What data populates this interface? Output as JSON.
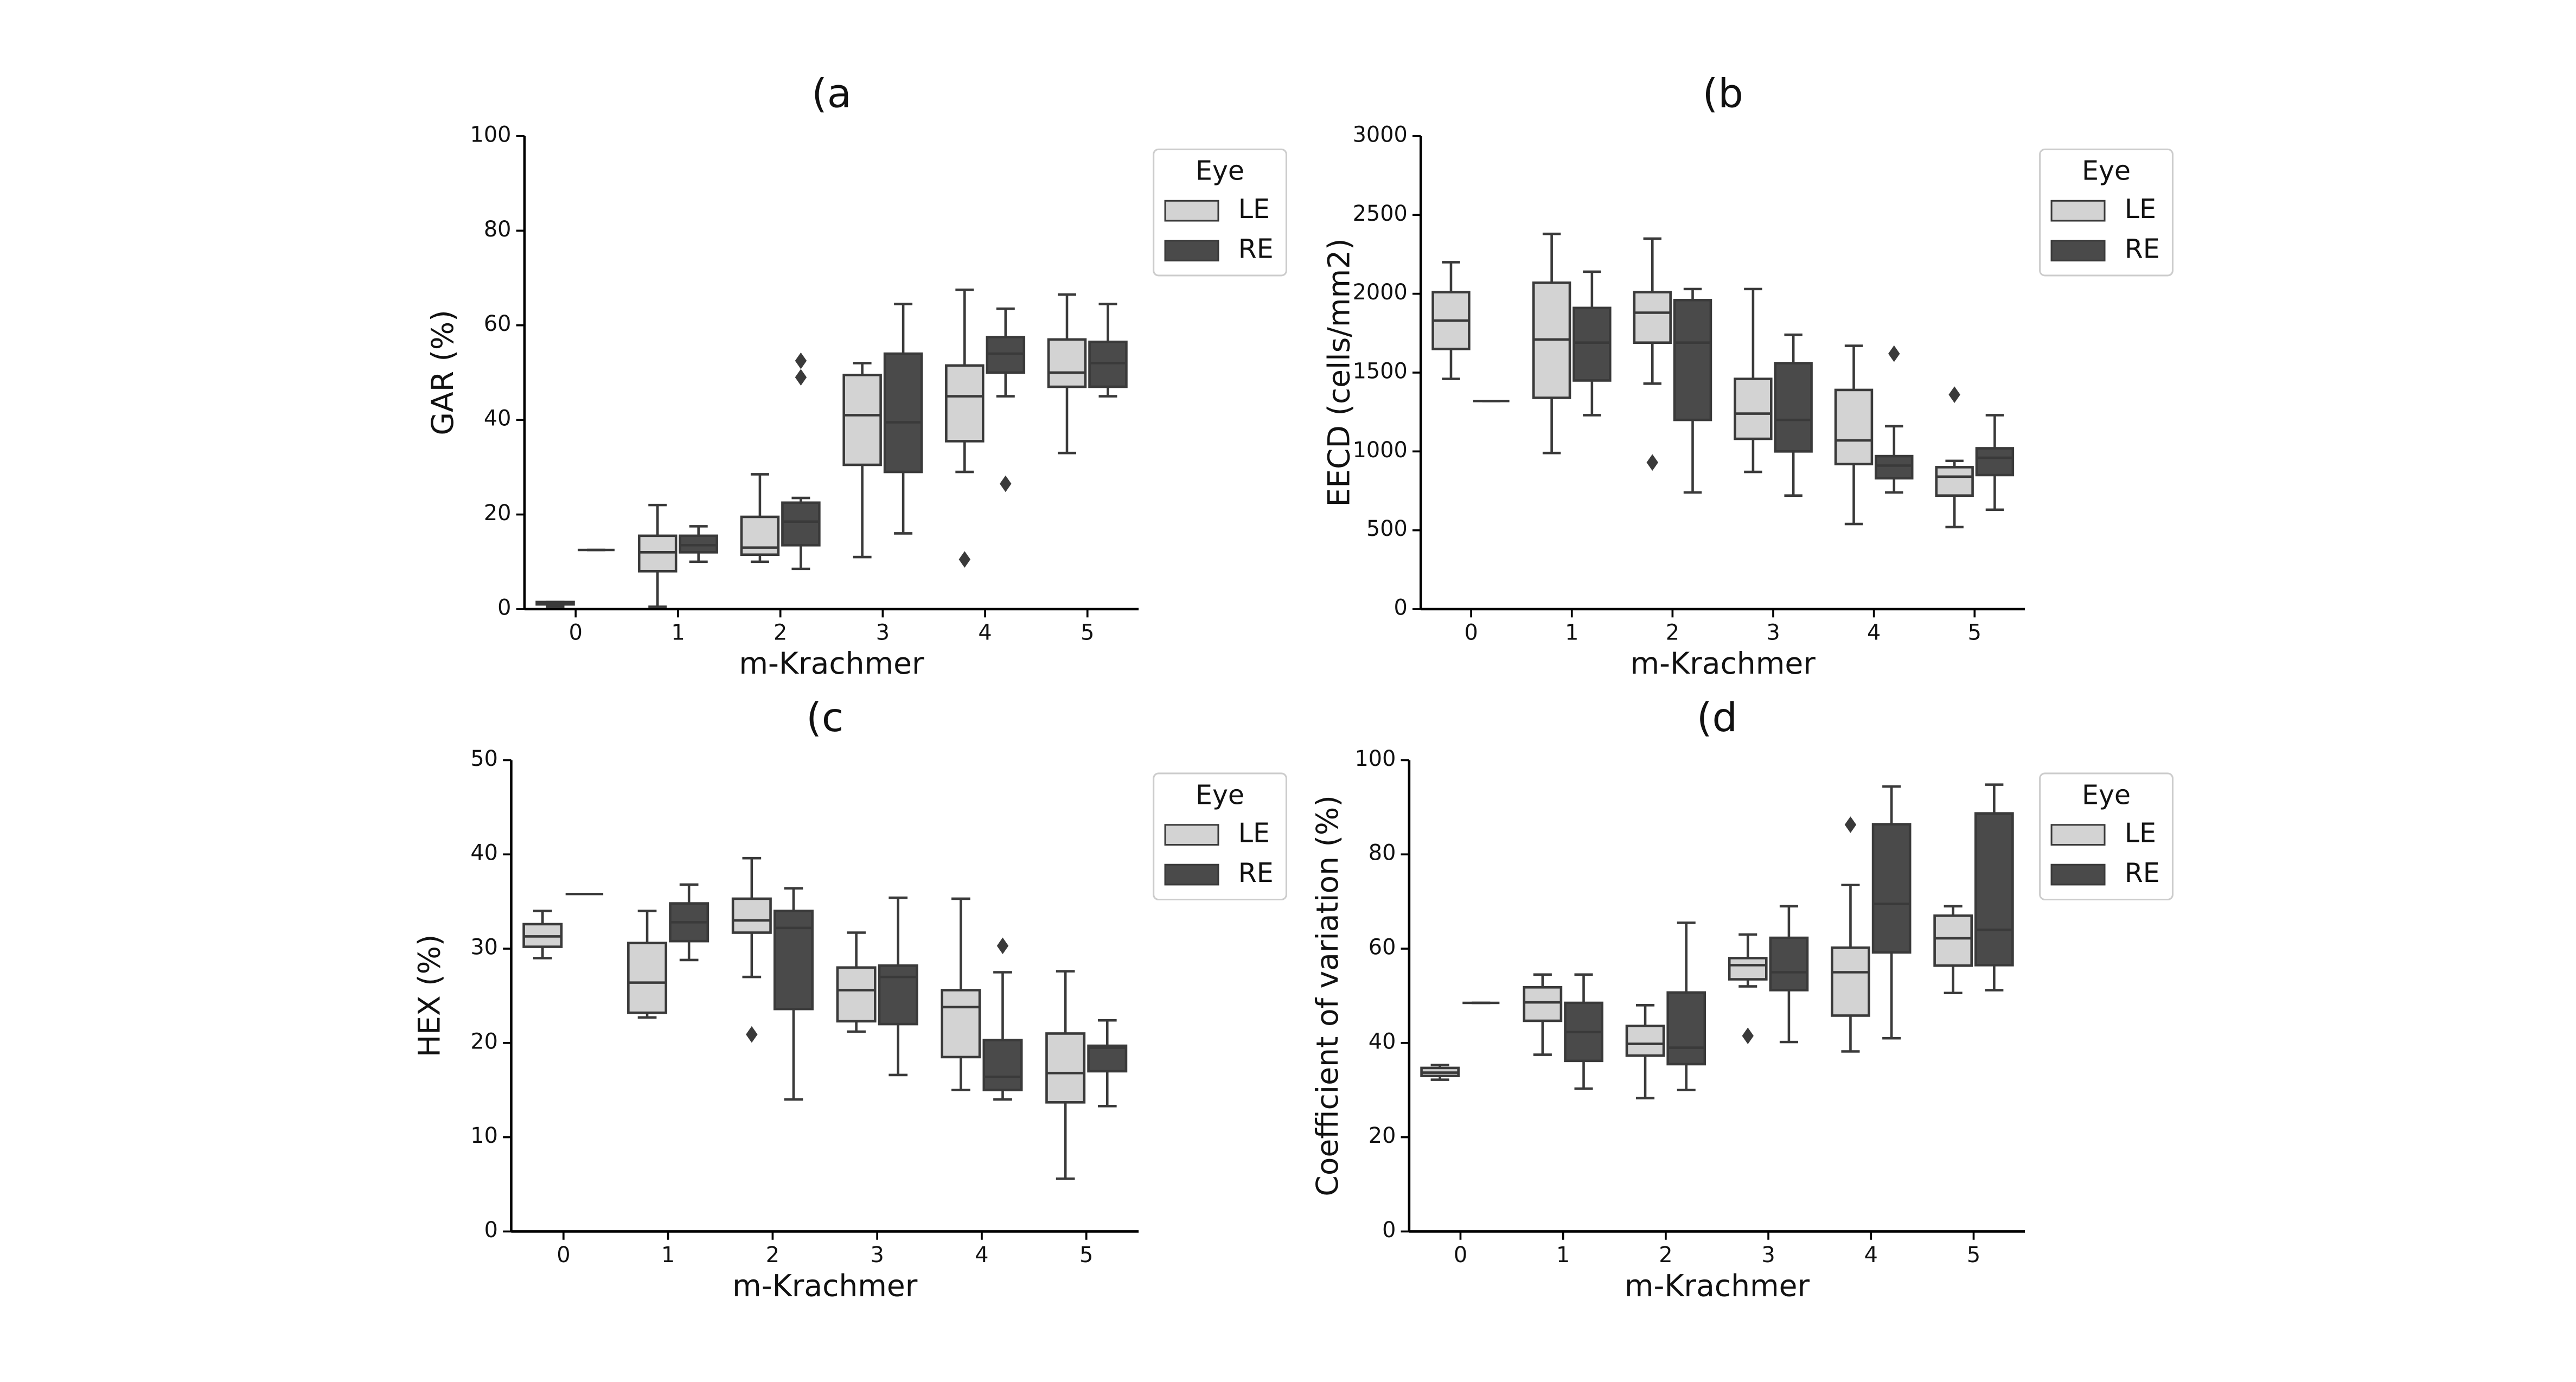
{
  "chart_data": [
    {
      "type": "box",
      "title": "(a",
      "xlabel": "m-Krachmer",
      "ylabel": "GAR (%)",
      "categories": [
        "0",
        "1",
        "2",
        "3",
        "4",
        "5"
      ],
      "ylim": [
        0,
        100
      ],
      "yticks": [
        0,
        20,
        40,
        60,
        80,
        100
      ],
      "legend_title": "Eye",
      "legend": "upper right outside",
      "series": [
        {
          "name": "LE",
          "color": "#d3d3d3",
          "boxes": [
            {
              "whislo": 0.5,
              "q1": 1,
              "med": 1.2,
              "q3": 1.5,
              "whishi": 1.5
            },
            {
              "whislo": 0.5,
              "q1": 8,
              "med": 12,
              "q3": 15.5,
              "whishi": 22
            },
            {
              "whislo": 10,
              "q1": 11.5,
              "med": 13,
              "q3": 19.5,
              "whishi": 28.5
            },
            {
              "whislo": 11,
              "q1": 30.5,
              "med": 41,
              "q3": 49.5,
              "whishi": 52
            },
            {
              "whislo": 29,
              "q1": 35.5,
              "med": 45,
              "q3": 51.5,
              "whishi": 67.5,
              "fliers": [
                10.5
              ]
            },
            {
              "whislo": 33,
              "q1": 47,
              "med": 50,
              "q3": 57,
              "whishi": 66.5
            }
          ]
        },
        {
          "name": "RE",
          "color": "#4a4a4a",
          "boxes": [
            {
              "whislo": 12.5,
              "q1": 12.5,
              "med": 12.5,
              "q3": 12.5,
              "whishi": 12.5
            },
            {
              "whislo": 10,
              "q1": 12,
              "med": 13.5,
              "q3": 15.5,
              "whishi": 17.5
            },
            {
              "whislo": 8.5,
              "q1": 13.5,
              "med": 18.5,
              "q3": 22.5,
              "whishi": 23.5,
              "fliers": [
                49,
                52.5
              ]
            },
            {
              "whislo": 16,
              "q1": 29,
              "med": 39.5,
              "q3": 54,
              "whishi": 64.5
            },
            {
              "whislo": 45,
              "q1": 50,
              "med": 54,
              "q3": 57.5,
              "whishi": 63.5,
              "fliers": [
                26.5
              ]
            },
            {
              "whislo": 45,
              "q1": 47,
              "med": 52,
              "q3": 56.5,
              "whishi": 64.5
            }
          ]
        }
      ]
    },
    {
      "type": "box",
      "title": "(b",
      "xlabel": "m-Krachmer",
      "ylabel": "EECD (cells/mm2)",
      "categories": [
        "0",
        "1",
        "2",
        "3",
        "4",
        "5"
      ],
      "ylim": [
        0,
        3000
      ],
      "yticks": [
        0,
        500,
        1000,
        1500,
        2000,
        2500,
        3000
      ],
      "legend_title": "Eye",
      "legend": "upper right outside",
      "series": [
        {
          "name": "LE",
          "color": "#d3d3d3",
          "boxes": [
            {
              "whislo": 1460,
              "q1": 1650,
              "med": 1830,
              "q3": 2010,
              "whishi": 2200
            },
            {
              "whislo": 990,
              "q1": 1340,
              "med": 1710,
              "q3": 2070,
              "whishi": 2380
            },
            {
              "whislo": 1430,
              "q1": 1690,
              "med": 1880,
              "q3": 2010,
              "whishi": 2350,
              "fliers": [
                930
              ]
            },
            {
              "whislo": 870,
              "q1": 1080,
              "med": 1240,
              "q3": 1460,
              "whishi": 2030
            },
            {
              "whislo": 540,
              "q1": 920,
              "med": 1070,
              "q3": 1390,
              "whishi": 1670
            },
            {
              "whislo": 520,
              "q1": 720,
              "med": 840,
              "q3": 900,
              "whishi": 940,
              "fliers": [
                1360
              ]
            }
          ]
        },
        {
          "name": "RE",
          "color": "#4a4a4a",
          "boxes": [
            {
              "whislo": 1320,
              "q1": 1320,
              "med": 1320,
              "q3": 1320,
              "whishi": 1320
            },
            {
              "whislo": 1230,
              "q1": 1450,
              "med": 1690,
              "q3": 1910,
              "whishi": 2140
            },
            {
              "whislo": 740,
              "q1": 1200,
              "med": 1690,
              "q3": 1960,
              "whishi": 2030
            },
            {
              "whislo": 720,
              "q1": 1000,
              "med": 1200,
              "q3": 1560,
              "whishi": 1740
            },
            {
              "whislo": 740,
              "q1": 830,
              "med": 910,
              "q3": 970,
              "whishi": 1160,
              "fliers": [
                1620
              ]
            },
            {
              "whislo": 630,
              "q1": 850,
              "med": 960,
              "q3": 1020,
              "whishi": 1230
            }
          ]
        }
      ]
    },
    {
      "type": "box",
      "title": "(c",
      "xlabel": "m-Krachmer",
      "ylabel": "HEX (%)",
      "categories": [
        "0",
        "1",
        "2",
        "3",
        "4",
        "5"
      ],
      "ylim": [
        0,
        50
      ],
      "yticks": [
        0,
        10,
        20,
        30,
        40,
        50
      ],
      "legend_title": "Eye",
      "legend": "upper right outside",
      "series": [
        {
          "name": "LE",
          "color": "#d3d3d3",
          "boxes": [
            {
              "whislo": 29,
              "q1": 30.2,
              "med": 31.3,
              "q3": 32.6,
              "whishi": 34
            },
            {
              "whislo": 22.7,
              "q1": 23.2,
              "med": 26.4,
              "q3": 30.6,
              "whishi": 34
            },
            {
              "whislo": 27,
              "q1": 31.7,
              "med": 33,
              "q3": 35.3,
              "whishi": 39.6,
              "fliers": [
                20.9
              ]
            },
            {
              "whislo": 21.2,
              "q1": 22.3,
              "med": 25.6,
              "q3": 28,
              "whishi": 31.7
            },
            {
              "whislo": 15,
              "q1": 18.5,
              "med": 23.8,
              "q3": 25.6,
              "whishi": 35.3
            },
            {
              "whislo": 5.6,
              "q1": 13.7,
              "med": 16.8,
              "q3": 21,
              "whishi": 27.6
            }
          ]
        },
        {
          "name": "RE",
          "color": "#4a4a4a",
          "boxes": [
            {
              "whislo": 35.8,
              "q1": 35.8,
              "med": 35.8,
              "q3": 35.8,
              "whishi": 35.8
            },
            {
              "whislo": 28.8,
              "q1": 30.8,
              "med": 32.8,
              "q3": 34.8,
              "whishi": 36.8
            },
            {
              "whislo": 14,
              "q1": 23.6,
              "med": 32.2,
              "q3": 34,
              "whishi": 36.4
            },
            {
              "whislo": 16.6,
              "q1": 22,
              "med": 27,
              "q3": 28.2,
              "whishi": 35.4
            },
            {
              "whislo": 14,
              "q1": 15,
              "med": 16.4,
              "q3": 20.3,
              "whishi": 27.5,
              "fliers": [
                30.3
              ]
            },
            {
              "whislo": 13.3,
              "q1": 17,
              "med": 19.5,
              "q3": 19.7,
              "whishi": 22.4
            }
          ]
        }
      ]
    },
    {
      "type": "box",
      "title": "(d",
      "xlabel": "m-Krachmer",
      "ylabel": "Coefficient of variation (%)",
      "categories": [
        "0",
        "1",
        "2",
        "3",
        "4",
        "5"
      ],
      "ylim": [
        0,
        100
      ],
      "yticks": [
        0,
        20,
        40,
        60,
        80,
        100
      ],
      "legend_title": "Eye",
      "legend": "upper right outside",
      "series": [
        {
          "name": "LE",
          "color": "#d3d3d3",
          "boxes": [
            {
              "whislo": 32.2,
              "q1": 33,
              "med": 33.7,
              "q3": 34.7,
              "whishi": 35.3
            },
            {
              "whislo": 37.5,
              "q1": 44.7,
              "med": 48.6,
              "q3": 51.8,
              "whishi": 54.5
            },
            {
              "whislo": 28.3,
              "q1": 37.3,
              "med": 39.8,
              "q3": 43.6,
              "whishi": 48
            },
            {
              "whislo": 52,
              "q1": 53.5,
              "med": 56.5,
              "q3": 58,
              "whishi": 63,
              "fliers": [
                41.5
              ]
            },
            {
              "whislo": 38.2,
              "q1": 45.8,
              "med": 55,
              "q3": 60.2,
              "whishi": 73.5,
              "fliers": [
                86.3
              ]
            },
            {
              "whislo": 50.6,
              "q1": 56.4,
              "med": 62.2,
              "q3": 67,
              "whishi": 69
            }
          ]
        },
        {
          "name": "RE",
          "color": "#4a4a4a",
          "boxes": [
            {
              "whislo": 48.5,
              "q1": 48.5,
              "med": 48.5,
              "q3": 48.5,
              "whishi": 48.5
            },
            {
              "whislo": 30.3,
              "q1": 36.2,
              "med": 42.3,
              "q3": 48.5,
              "whishi": 54.5
            },
            {
              "whislo": 30,
              "q1": 35.5,
              "med": 39,
              "q3": 50.7,
              "whishi": 65.5
            },
            {
              "whislo": 40.2,
              "q1": 51.2,
              "med": 55,
              "q3": 62.3,
              "whishi": 69
            },
            {
              "whislo": 41,
              "q1": 59.2,
              "med": 69.5,
              "q3": 86.4,
              "whishi": 94.4
            },
            {
              "whislo": 51.2,
              "q1": 56.5,
              "med": 64,
              "q3": 88.7,
              "whishi": 94.8
            }
          ]
        }
      ]
    }
  ]
}
